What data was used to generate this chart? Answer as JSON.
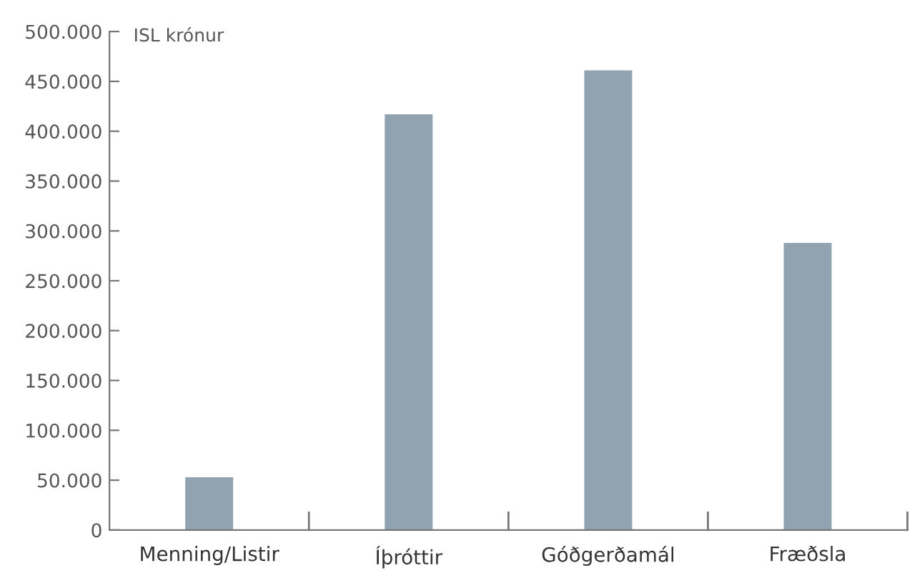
{
  "chart_data": {
    "type": "bar",
    "ylabel": "ISL krónur",
    "categories": [
      "Menning/Listir",
      "Íþróttir",
      "Góðgerðamál",
      "Fræðsla"
    ],
    "values": [
      53000,
      417000,
      461000,
      288000
    ],
    "color": "#91a3b0",
    "ylim": [
      0,
      500000
    ],
    "yticks": [
      {
        "value": 0,
        "label": "0"
      },
      {
        "value": 50000,
        "label": "50.000"
      },
      {
        "value": 100000,
        "label": "100.000"
      },
      {
        "value": 150000,
        "label": "150.000"
      },
      {
        "value": 200000,
        "label": "200.000"
      },
      {
        "value": 250000,
        "label": "250.000"
      },
      {
        "value": 300000,
        "label": "300.000"
      },
      {
        "value": 350000,
        "label": "350.000"
      },
      {
        "value": 400000,
        "label": "400.000"
      },
      {
        "value": 450000,
        "label": "450.000"
      },
      {
        "value": 500000,
        "label": "500.000"
      }
    ],
    "grid": false
  }
}
